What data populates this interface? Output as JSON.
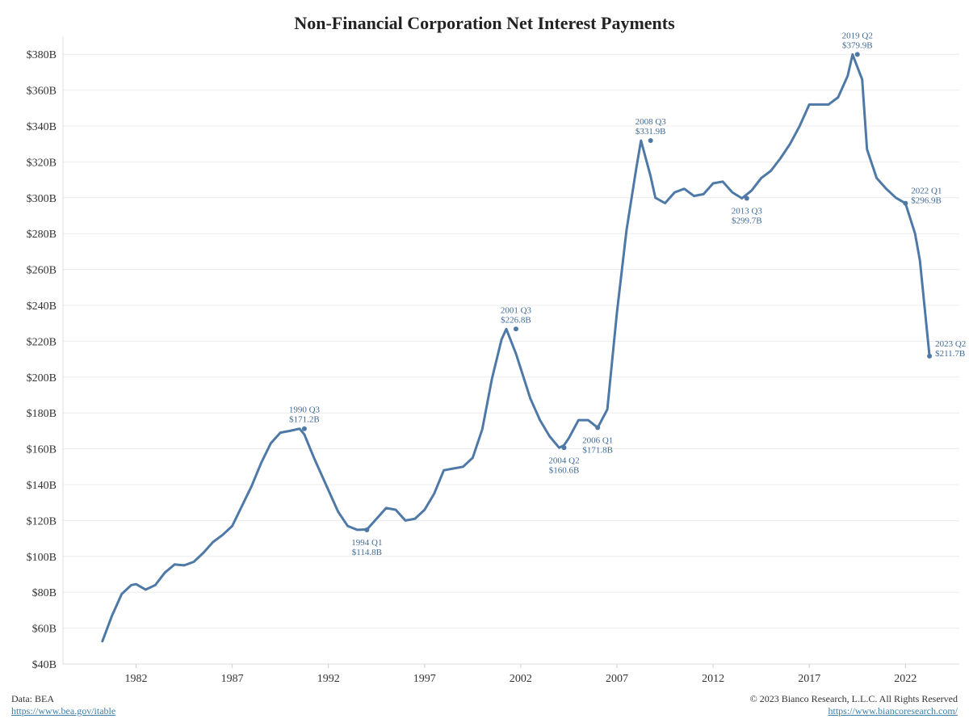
{
  "chart_data": {
    "type": "line",
    "title": "Non-Financial Corporation Net Interest Payments",
    "y_ticks": [
      "$40B",
      "$60B",
      "$80B",
      "$100B",
      "$120B",
      "$140B",
      "$160B",
      "$180B",
      "$200B",
      "$220B",
      "$240B",
      "$260B",
      "$280B",
      "$300B",
      "$320B",
      "$340B",
      "$360B",
      "$380B"
    ],
    "x_ticks": [
      "1982",
      "1987",
      "1992",
      "1997",
      "2002",
      "2007",
      "2012",
      "2017",
      "2022"
    ],
    "ylim": [
      40,
      390
    ],
    "xlim": [
      1978.2,
      2024.8
    ],
    "grid": "horizontal",
    "line_color": "#4e79a7",
    "series": [
      {
        "x": [
          1980.25,
          1980.75,
          1981.25,
          1981.75,
          1982.0,
          1982.5,
          1983.0,
          1983.5,
          1984.0,
          1984.5,
          1985.0,
          1985.5,
          1986.0,
          1986.5,
          1987.0,
          1987.5,
          1988.0,
          1988.5,
          1989.0,
          1989.5,
          1990.0,
          1990.5,
          1990.75,
          1991.25,
          1992.0,
          1992.5,
          1993.0,
          1993.5,
          1994.0,
          1994.5,
          1995.0,
          1995.5,
          1996.0,
          1996.5,
          1997.0,
          1997.5,
          1998.0,
          1998.5,
          1999.0,
          1999.5,
          2000.0,
          2000.5,
          2001.0,
          2001.25,
          2001.75,
          2002.5,
          2003.0,
          2003.5,
          2004.0,
          2004.25,
          2004.5,
          2005.0,
          2005.5,
          2006.0,
          2006.5,
          2007.0,
          2007.5,
          2008.0,
          2008.25,
          2008.75,
          2009.0,
          2009.5,
          2010.0,
          2010.5,
          2011.0,
          2011.5,
          2012.0,
          2012.5,
          2013.0,
          2013.5,
          2014.0,
          2014.5,
          2015.0,
          2015.5,
          2016.0,
          2016.5,
          2017.0,
          2017.5,
          2018.0,
          2018.5,
          2019.0,
          2019.25,
          2019.75,
          2020.0,
          2020.5,
          2021.0,
          2021.5,
          2022.0,
          2022.5,
          2022.75,
          2023.25
        ],
        "y": [
          52.7,
          67,
          79,
          84,
          84.5,
          81.5,
          84,
          91,
          95.5,
          95,
          97,
          102,
          108,
          112,
          117,
          128,
          139,
          152,
          163,
          169,
          170,
          171.2,
          168,
          155,
          137,
          125,
          117,
          114.8,
          115,
          121,
          127,
          126,
          120,
          121,
          126,
          135,
          148,
          149,
          150,
          155,
          171,
          199,
          221,
          226.8,
          213,
          188,
          176,
          167,
          160.6,
          162,
          166,
          176,
          176,
          171.8,
          182,
          236,
          282,
          316,
          331.9,
          312,
          300,
          297,
          303,
          305,
          301,
          302,
          308,
          309,
          303,
          299.7,
          304,
          311,
          315,
          322,
          330,
          340,
          352,
          352,
          352,
          356,
          368,
          379.9,
          366,
          327,
          311,
          305,
          300,
          296.9,
          280,
          265,
          211.7
        ]
      }
    ],
    "annotations": [
      {
        "x": 1990.75,
        "y": 171.2,
        "label": "1990 Q3",
        "value": "$171.2B",
        "pos": "above"
      },
      {
        "x": 1994.0,
        "y": 114.8,
        "label": "1994 Q1",
        "value": "$114.8B",
        "pos": "below"
      },
      {
        "x": 2001.75,
        "y": 226.8,
        "label": "2001 Q3",
        "value": "$226.8B",
        "pos": "above"
      },
      {
        "x": 2004.25,
        "y": 160.6,
        "label": "2004 Q2",
        "value": "$160.6B",
        "pos": "below"
      },
      {
        "x": 2006.0,
        "y": 171.8,
        "label": "2006 Q1",
        "value": "$171.8B",
        "pos": "below"
      },
      {
        "x": 2008.75,
        "y": 331.9,
        "label": "2008 Q3",
        "value": "$331.9B",
        "pos": "above"
      },
      {
        "x": 2013.75,
        "y": 299.7,
        "label": "2013 Q3",
        "value": "$299.7B",
        "pos": "below"
      },
      {
        "x": 2019.5,
        "y": 379.9,
        "label": "2019 Q2",
        "value": "$379.9B",
        "pos": "above"
      },
      {
        "x": 2022.0,
        "y": 296.9,
        "label": "2022 Q1",
        "value": "$296.9B",
        "pos": "right"
      },
      {
        "x": 2023.25,
        "y": 211.7,
        "label": "2023 Q2",
        "value": "$211.7B",
        "pos": "right"
      }
    ]
  },
  "footer": {
    "source_label": "Data: BEA",
    "source_link": "https://www.bea.gov/itable",
    "copyright": "© 2023 Bianco Research, L.L.C. All Rights Reserved",
    "site_link": "https://www.biancoresearch.com/"
  }
}
